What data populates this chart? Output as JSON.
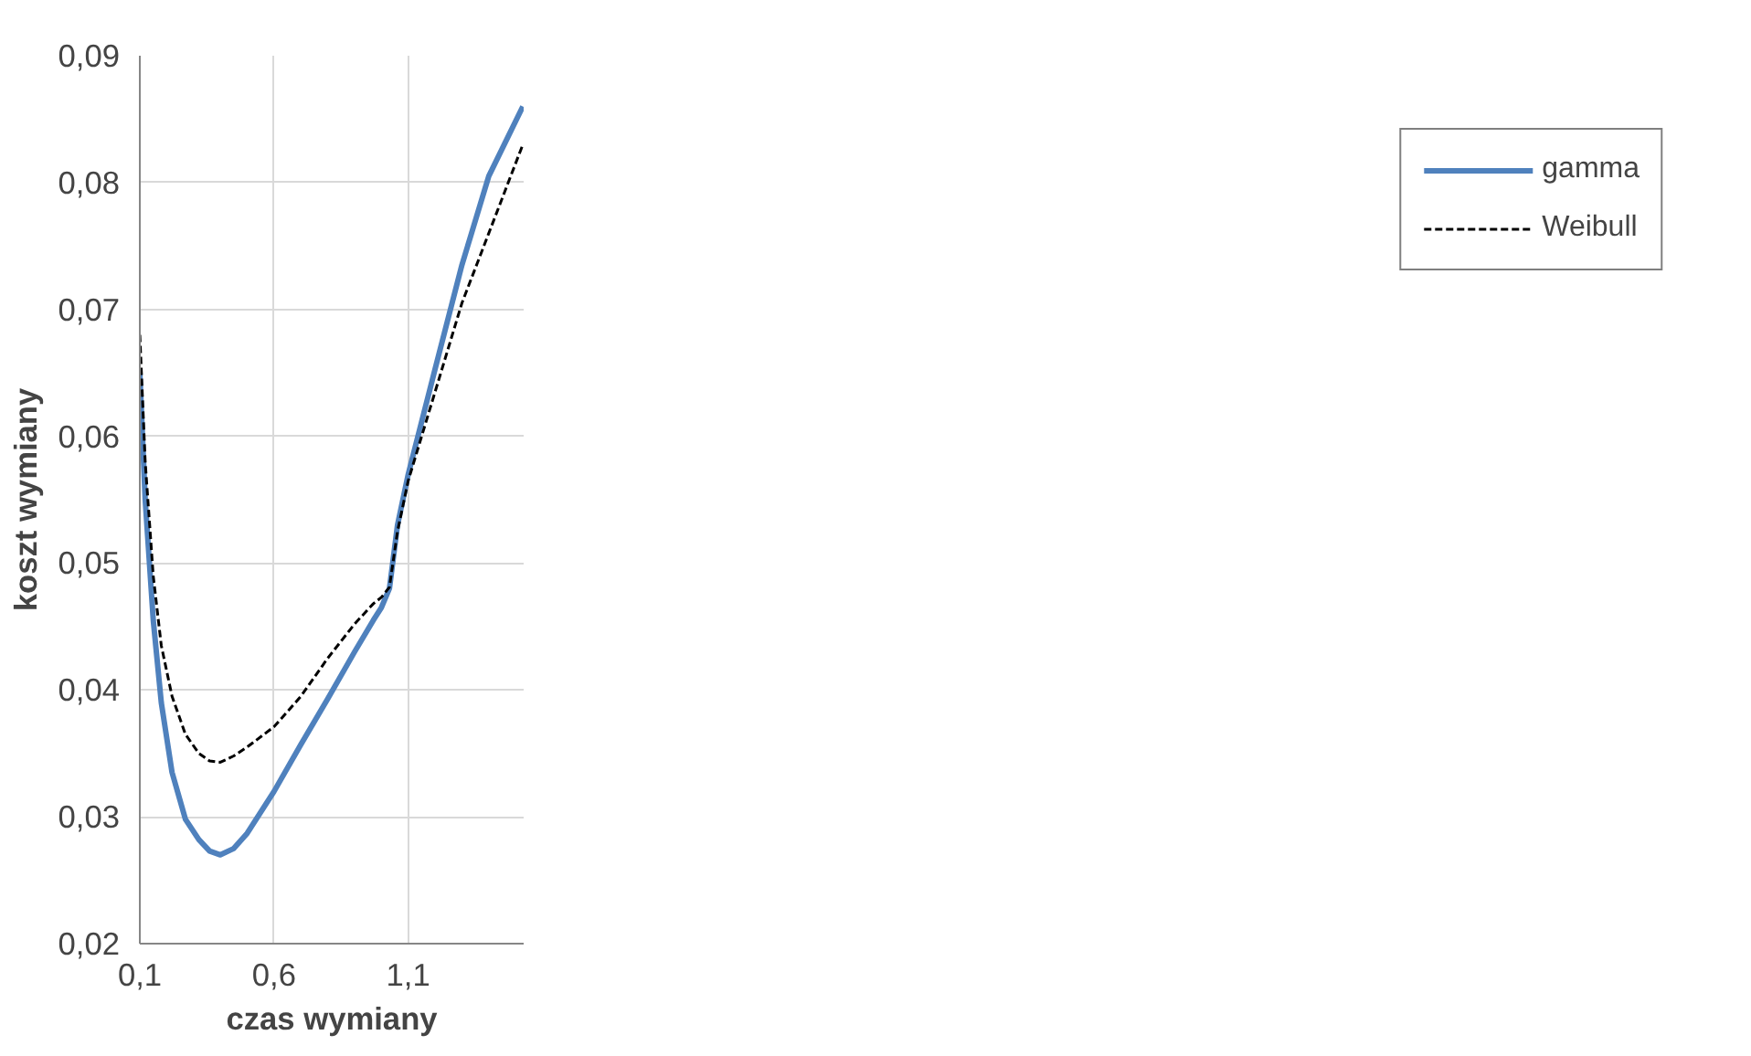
{
  "chart_data": {
    "type": "line",
    "xlabel": "czas wymiany",
    "ylabel": "koszt wymiany",
    "xlim": [
      0.1,
      1.53
    ],
    "ylim": [
      0.02,
      0.09
    ],
    "xticks": [
      {
        "value": 0.1,
        "label": "0,1"
      },
      {
        "value": 0.6,
        "label": "0,6"
      },
      {
        "value": 1.1,
        "label": "1,1"
      }
    ],
    "yticks": [
      {
        "value": 0.02,
        "label": "0,02"
      },
      {
        "value": 0.03,
        "label": "0,03"
      },
      {
        "value": 0.04,
        "label": "0,04"
      },
      {
        "value": 0.05,
        "label": "0,05"
      },
      {
        "value": 0.06,
        "label": "0,06"
      },
      {
        "value": 0.07,
        "label": "0,07"
      },
      {
        "value": 0.08,
        "label": "0,08"
      },
      {
        "value": 0.09,
        "label": "0,09"
      }
    ],
    "grid": true,
    "legend": "right",
    "marker": "none",
    "series": [
      {
        "name": "gamma",
        "color": "#4f81bd",
        "line_style": "solid",
        "x": [
          0.1,
          0.12,
          0.15,
          0.18,
          0.22,
          0.27,
          0.32,
          0.36,
          0.4,
          0.45,
          0.5,
          0.6,
          0.7,
          0.8,
          0.9,
          0.97,
          1.0,
          1.03,
          1.06,
          1.1,
          1.2,
          1.3,
          1.4,
          1.527
        ],
        "values": [
          0.065,
          0.055,
          0.0455,
          0.039,
          0.0335,
          0.0298,
          0.0282,
          0.0273,
          0.027,
          0.0275,
          0.0287,
          0.032,
          0.0357,
          0.0393,
          0.043,
          0.0455,
          0.0465,
          0.048,
          0.053,
          0.057,
          0.0653,
          0.0735,
          0.0805,
          0.086
        ]
      },
      {
        "name": "Weibull",
        "color": "#000000",
        "line_style": "dashed",
        "x": [
          0.1,
          0.12,
          0.15,
          0.18,
          0.22,
          0.27,
          0.32,
          0.36,
          0.4,
          0.45,
          0.5,
          0.6,
          0.7,
          0.8,
          0.9,
          0.97,
          1.0,
          1.03,
          1.06,
          1.1,
          1.2,
          1.3,
          1.4,
          1.527
        ],
        "values": [
          0.068,
          0.058,
          0.049,
          0.0435,
          0.0395,
          0.0365,
          0.035,
          0.0344,
          0.0343,
          0.0348,
          0.0355,
          0.0371,
          0.0395,
          0.0425,
          0.0452,
          0.0468,
          0.0473,
          0.0481,
          0.0525,
          0.0565,
          0.0635,
          0.0705,
          0.076,
          0.083
        ]
      }
    ]
  }
}
